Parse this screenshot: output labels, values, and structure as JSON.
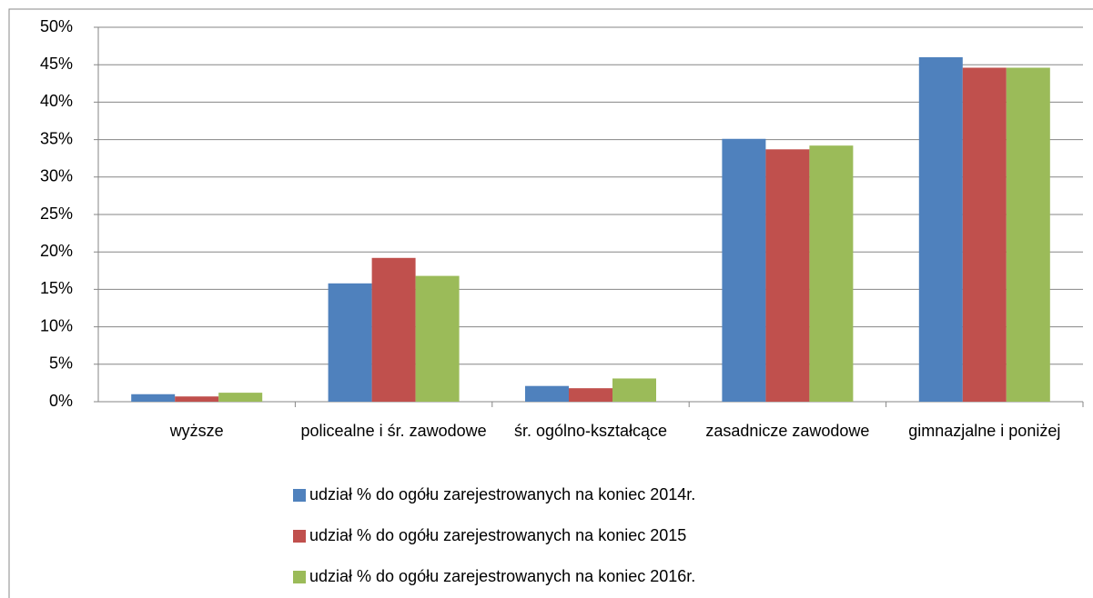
{
  "chart_data": {
    "type": "bar",
    "categories": [
      "wyższe",
      "policealne i śr. zawodowe",
      "śr. ogólno-kształcące",
      "zasadnicze zawodowe",
      "gimnazjalne i poniżej"
    ],
    "series": [
      {
        "name": "udział % do ogółu zarejestrowanych na koniec 2014r.",
        "color": "#4f81bd",
        "values": [
          1.0,
          15.8,
          2.1,
          35.1,
          46.0
        ]
      },
      {
        "name": "udział % do ogółu zarejestrowanych na koniec 2015",
        "color": "#c0504d",
        "values": [
          0.7,
          19.2,
          1.8,
          33.7,
          44.6
        ]
      },
      {
        "name": "udział % do ogółu zarejestrowanych na koniec 2016r.",
        "color": "#9bbb59",
        "values": [
          1.2,
          16.8,
          3.1,
          34.2,
          44.6
        ]
      }
    ],
    "ylim": [
      0,
      50
    ],
    "yticks": [
      {
        "value": 0,
        "label": "0%"
      },
      {
        "value": 5,
        "label": "5%"
      },
      {
        "value": 10,
        "label": "10%"
      },
      {
        "value": 15,
        "label": "15%"
      },
      {
        "value": 20,
        "label": "20%"
      },
      {
        "value": 25,
        "label": "25%"
      },
      {
        "value": 30,
        "label": "30%"
      },
      {
        "value": 35,
        "label": "35%"
      },
      {
        "value": 40,
        "label": "40%"
      },
      {
        "value": 45,
        "label": "45%"
      },
      {
        "value": 50,
        "label": "50%"
      }
    ],
    "grid": true,
    "legend": "bottom"
  }
}
